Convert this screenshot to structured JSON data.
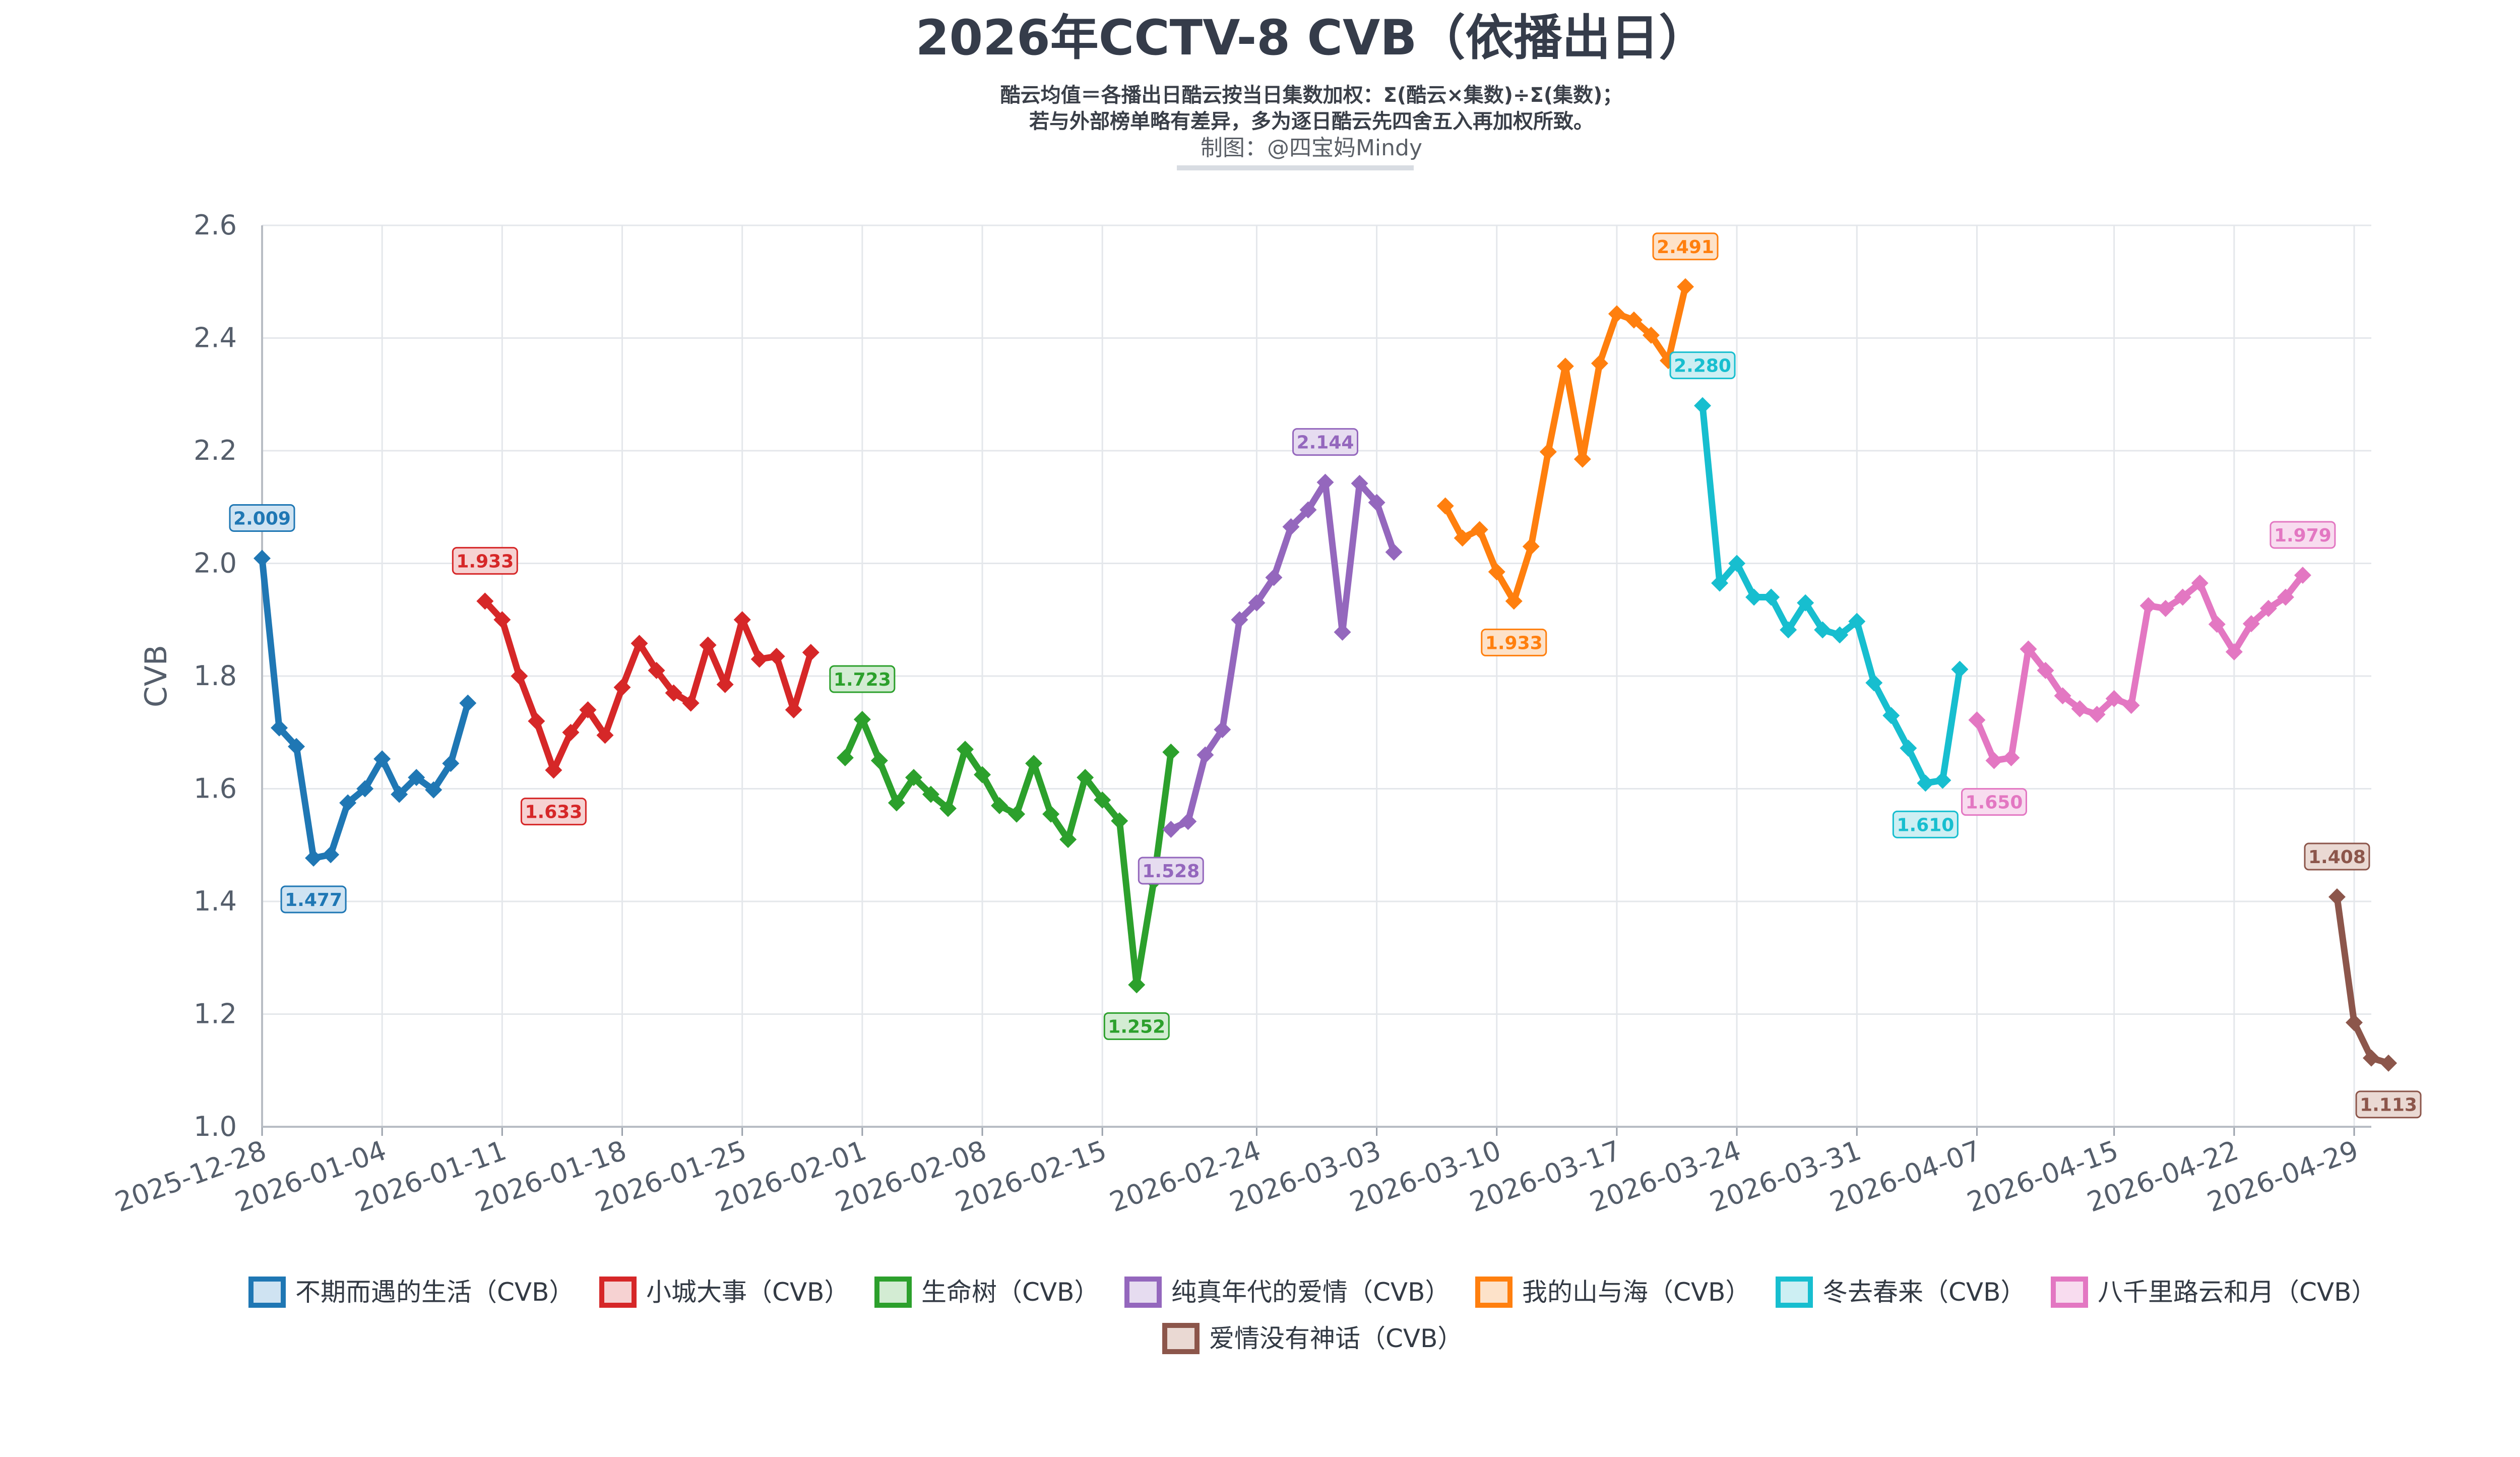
{
  "title": "2026年CCTV-8 CVB（依播出日）",
  "subtitle_lines": [
    "酷云均值＝各播出日酷云按当日集数加权：Σ(酷云×集数)÷Σ(集数)；",
    "若与外部榜单略有差异，多为逐日酷云先四舍五入再加权所致。"
  ],
  "credit": "制图：@四宝妈Mindy",
  "chart_data": {
    "type": "line",
    "title": "2026年CCTV-8 CVB（依播出日）",
    "xlabel": "",
    "ylabel": "CVB",
    "xlim": [
      "2025-12-28",
      "2026-04-30"
    ],
    "ylim": [
      1.0,
      2.6
    ],
    "yticks": [
      "1.0",
      "1.2",
      "1.4",
      "1.6",
      "1.8",
      "2.0",
      "2.2",
      "2.4",
      "2.6"
    ],
    "xticks": [
      "2025-12-28",
      "2026-01-04",
      "2026-01-11",
      "2026-01-18",
      "2026-01-25",
      "2026-02-01",
      "2026-02-08",
      "2026-02-15",
      "2026-02-24",
      "2026-03-03",
      "2026-03-10",
      "2026-03-17",
      "2026-03-24",
      "2026-03-31",
      "2026-04-07",
      "2026-04-15",
      "2026-04-22",
      "2026-04-29"
    ],
    "grid": true,
    "legend_position": "bottom",
    "series": [
      {
        "name": "不期而遇的生活（CVB）",
        "color": "#1f77b4",
        "fill": "#cfe3f2",
        "start": "2025-12-28",
        "values": [
          2.009,
          1.708,
          1.675,
          1.477,
          1.483,
          1.575,
          1.6,
          1.653,
          1.59,
          1.62,
          1.598,
          1.645,
          1.752
        ],
        "labels": [
          {
            "value": "2.009",
            "index": 0,
            "pos": "above"
          },
          {
            "value": "1.477",
            "index": 3,
            "pos": "below"
          }
        ]
      },
      {
        "name": "小城大事（CVB）",
        "color": "#d62728",
        "fill": "#f6d2d2",
        "start": "2026-01-10",
        "values": [
          1.933,
          1.9,
          1.8,
          1.72,
          1.633,
          1.7,
          1.74,
          1.695,
          1.78,
          1.858,
          1.81,
          1.77,
          1.752,
          1.855,
          1.785,
          1.9,
          1.83,
          1.835,
          1.74,
          1.842
        ],
        "labels": [
          {
            "value": "1.933",
            "index": 0,
            "pos": "above"
          },
          {
            "value": "1.633",
            "index": 4,
            "pos": "below"
          }
        ]
      },
      {
        "name": "生命树（CVB）",
        "color": "#2ca02c",
        "fill": "#d3ecd3",
        "start": "2026-01-31",
        "values": [
          1.655,
          1.723,
          1.65,
          1.575,
          1.62,
          1.59,
          1.565,
          1.67,
          1.625,
          1.57,
          1.555,
          1.645,
          1.555,
          1.51,
          1.62,
          1.58,
          1.543,
          1.252,
          1.436,
          1.665
        ],
        "labels": [
          {
            "value": "1.723",
            "index": 1,
            "pos": "above"
          },
          {
            "value": "1.252",
            "index": 17,
            "pos": "below"
          }
        ]
      },
      {
        "name": "纯真年代的爱情（CVB）",
        "color": "#9467bd",
        "fill": "#e6dcf0",
        "start": "2026-02-19",
        "values": [
          1.528,
          1.542,
          1.66,
          1.705,
          1.9,
          1.93,
          1.975,
          2.065,
          2.095,
          2.144,
          1.878,
          2.142,
          2.108,
          2.02
        ],
        "labels": [
          {
            "value": "1.528",
            "index": 0,
            "pos": "below"
          },
          {
            "value": "2.144",
            "index": 9,
            "pos": "above"
          }
        ]
      },
      {
        "name": "我的山与海（CVB）",
        "color": "#ff7f0e",
        "fill": "#fde2c9",
        "start": "2026-03-07",
        "values": [
          2.102,
          2.045,
          2.06,
          1.985,
          1.933,
          2.03,
          2.198,
          2.35,
          2.185,
          2.355,
          2.443,
          2.432,
          2.405,
          2.36,
          2.491
        ],
        "labels": [
          {
            "value": "1.933",
            "index": 4,
            "pos": "below"
          },
          {
            "value": "2.491",
            "index": 14,
            "pos": "above"
          }
        ]
      },
      {
        "name": "冬去春来（CVB）",
        "color": "#17becf",
        "fill": "#cdeff3",
        "start": "2026-03-22",
        "values": [
          2.28,
          1.965,
          2.0,
          1.94,
          1.94,
          1.882,
          1.93,
          1.882,
          1.873,
          1.897,
          1.788,
          1.73,
          1.672,
          1.61,
          1.615,
          1.812
        ],
        "labels": [
          {
            "value": "2.280",
            "index": 0,
            "pos": "above"
          },
          {
            "value": "1.610",
            "index": 13,
            "pos": "below"
          }
        ]
      },
      {
        "name": "八千里路云和月（CVB）",
        "color": "#e377c2",
        "fill": "#f8dcef",
        "start": "2026-04-07",
        "values": [
          1.722,
          1.65,
          1.655,
          1.848,
          1.81,
          1.765,
          1.742,
          1.732,
          1.76,
          1.748,
          1.925,
          1.92,
          1.94,
          1.965,
          1.892,
          1.843,
          1.893,
          1.92,
          1.94,
          1.979
        ],
        "labels": [
          {
            "value": "1.650",
            "index": 1,
            "pos": "below"
          },
          {
            "value": "1.979",
            "index": 19,
            "pos": "above"
          }
        ]
      },
      {
        "name": "爱情没有神话（CVB）",
        "color": "#8c564b",
        "fill": "#ead9d3",
        "start": "2026-04-28",
        "values": [
          1.408,
          1.185,
          1.122,
          1.113
        ],
        "labels": [
          {
            "value": "1.408",
            "index": 0,
            "pos": "above"
          },
          {
            "value": "1.113",
            "index": 3,
            "pos": "below"
          }
        ]
      }
    ]
  }
}
